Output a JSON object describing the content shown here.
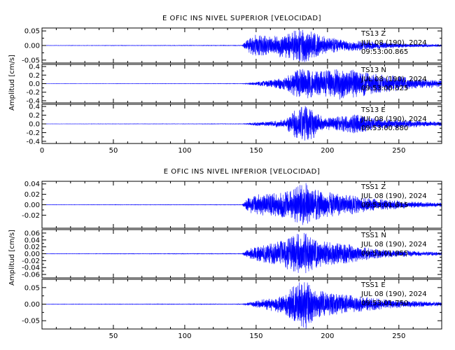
{
  "charts": [
    {
      "title": "E OFIC INS NIVEL SUPERIOR [VELOCIDAD]",
      "ylabel": "Amplitud [cm/s]",
      "panels": [
        {
          "station": "TS13",
          "component": "Z",
          "date": "JUL 08 (190), 2024",
          "time": "09:53:00.865",
          "ylim": [
            -0.06,
            0.06
          ],
          "yticks": [
            0.05,
            0.0,
            -0.05
          ],
          "ytick_labels": [
            "0.05",
            "0.00",
            "-0.05"
          ]
        },
        {
          "station": "TS13",
          "component": "N",
          "date": "JUL 08 (190), 2024",
          "time": "09:53:00.025",
          "ylim": [
            -0.45,
            0.45
          ],
          "yticks": [
            0.4,
            0.2,
            0.0,
            -0.2,
            -0.4
          ],
          "ytick_labels": [
            "0.4",
            "0.2",
            "0.0",
            "-0.2",
            "-0.4"
          ]
        },
        {
          "station": "TS13",
          "component": "E",
          "date": "JUL 08 (190), 2024",
          "time": "09:53:00.880",
          "ylim": [
            -0.45,
            0.45
          ],
          "yticks": [
            0.4,
            0.2,
            0.0,
            -0.2,
            -0.4
          ],
          "ytick_labels": [
            "0.4",
            "0.2",
            "0.0",
            "-0.2",
            "-0.4"
          ]
        }
      ],
      "xticks": [
        0,
        50,
        100,
        150,
        200,
        250
      ],
      "xtick_labels": [
        "0",
        "50",
        "100",
        "150",
        "200",
        "250"
      ]
    },
    {
      "title": "E OFIC INS NIVEL INFERIOR [VELOCIDAD]",
      "ylabel": "Amplitud [cm/s]",
      "panels": [
        {
          "station": "TSS1",
          "component": "Z",
          "date": "JUL 08 (190), 2024",
          "time": "09:53:01.615",
          "ylim": [
            -0.045,
            0.045
          ],
          "yticks": [
            0.04,
            0.02,
            0.0,
            -0.02
          ],
          "ytick_labels": [
            "0.04",
            "0.02",
            "0.00",
            "-0.02"
          ]
        },
        {
          "station": "TSS1",
          "component": "N",
          "date": "JUL 08 (190), 2024",
          "time": "09:53:01.955",
          "ylim": [
            -0.07,
            0.07
          ],
          "yticks": [
            0.06,
            0.04,
            0.02,
            0.0,
            -0.02,
            -0.04,
            -0.06
          ],
          "ytick_labels": [
            "0.06",
            "0.04",
            "0.02",
            "0.00",
            "-0.02",
            "-0.04",
            "-0.06"
          ]
        },
        {
          "station": "TSS1",
          "component": "E",
          "date": "JUL 08 (190), 2024",
          "time": "09:53:01.750",
          "ylim": [
            -0.075,
            0.075
          ],
          "yticks": [
            0.05,
            0.0,
            -0.05
          ],
          "ytick_labels": [
            "0.05",
            "0.00",
            "-0.05"
          ]
        }
      ],
      "xticks": [
        50,
        100,
        150,
        200,
        250
      ],
      "xtick_labels": [
        "50",
        "100",
        "150",
        "200",
        "250"
      ]
    }
  ],
  "chart_data": [
    {
      "type": "line",
      "title": "E OFIC INS NIVEL SUPERIOR [VELOCIDAD]",
      "ylabel": "Amplitud [cm/s]",
      "xlim": [
        0,
        280
      ],
      "grid": false,
      "color": "#0000ff",
      "series": [
        {
          "name": "TS13 Z",
          "ylim": [
            -0.06,
            0.06
          ],
          "envelope": {
            "x": [
              0,
              140,
              145,
              150,
              160,
              170,
              175,
              180,
              185,
              190,
              195,
              200,
              210,
              220,
              230,
              240,
              250,
              260,
              270,
              280
            ],
            "y": [
              0.0005,
              0.001,
              0.025,
              0.04,
              0.035,
              0.045,
              0.05,
              0.055,
              0.06,
              0.045,
              0.035,
              0.03,
              0.02,
              0.018,
              0.015,
              0.01,
              0.008,
              0.006,
              0.005,
              0.004
            ]
          }
        },
        {
          "name": "TS13 N",
          "ylim": [
            -0.45,
            0.45
          ],
          "envelope": {
            "x": [
              0,
              140,
              145,
              150,
              160,
              170,
              175,
              180,
              185,
              190,
              200,
              210,
              220,
              230,
              240,
              250,
              260,
              270,
              280
            ],
            "y": [
              0.002,
              0.005,
              0.02,
              0.04,
              0.08,
              0.15,
              0.25,
              0.35,
              0.4,
              0.3,
              0.32,
              0.38,
              0.35,
              0.25,
              0.2,
              0.18,
              0.12,
              0.1,
              0.08
            ]
          }
        },
        {
          "name": "TS13 E",
          "ylim": [
            -0.45,
            0.45
          ],
          "envelope": {
            "x": [
              0,
              140,
              145,
              150,
              160,
              170,
              175,
              180,
              185,
              190,
              195,
              200,
              210,
              220,
              230,
              240,
              250,
              260,
              270,
              280
            ],
            "y": [
              0.002,
              0.005,
              0.02,
              0.04,
              0.06,
              0.1,
              0.25,
              0.4,
              0.42,
              0.35,
              0.2,
              0.15,
              0.18,
              0.22,
              0.15,
              0.12,
              0.1,
              0.08,
              0.06,
              0.05
            ]
          }
        }
      ]
    },
    {
      "type": "line",
      "title": "E OFIC INS NIVEL INFERIOR [VELOCIDAD]",
      "ylabel": "Amplitud [cm/s]",
      "xlim": [
        0,
        280
      ],
      "grid": false,
      "color": "#0000ff",
      "series": [
        {
          "name": "TSS1 Z",
          "ylim": [
            -0.045,
            0.045
          ],
          "envelope": {
            "x": [
              0,
              140,
              145,
              150,
              160,
              170,
              175,
              180,
              185,
              190,
              200,
              210,
              220,
              230,
              240,
              250,
              260,
              270,
              280
            ],
            "y": [
              0.0003,
              0.0005,
              0.015,
              0.02,
              0.022,
              0.025,
              0.03,
              0.04,
              0.042,
              0.03,
              0.025,
              0.02,
              0.018,
              0.012,
              0.01,
              0.008,
              0.006,
              0.005,
              0.004
            ]
          }
        },
        {
          "name": "TSS1 N",
          "ylim": [
            -0.07,
            0.07
          ],
          "envelope": {
            "x": [
              0,
              140,
              145,
              150,
              160,
              170,
              175,
              180,
              185,
              190,
              200,
              210,
              220,
              230,
              240,
              250,
              260,
              270,
              280
            ],
            "y": [
              0.0005,
              0.001,
              0.015,
              0.02,
              0.03,
              0.04,
              0.055,
              0.065,
              0.06,
              0.045,
              0.035,
              0.03,
              0.025,
              0.015,
              0.012,
              0.01,
              0.008,
              0.006,
              0.005
            ]
          }
        },
        {
          "name": "TSS1 E",
          "ylim": [
            -0.075,
            0.075
          ],
          "envelope": {
            "x": [
              0,
              140,
              145,
              150,
              160,
              170,
              175,
              180,
              185,
              190,
              200,
              210,
              220,
              230,
              240,
              250,
              260,
              270,
              280
            ],
            "y": [
              0.0005,
              0.001,
              0.005,
              0.01,
              0.02,
              0.03,
              0.05,
              0.07,
              0.075,
              0.05,
              0.035,
              0.03,
              0.025,
              0.02,
              0.015,
              0.012,
              0.01,
              0.008,
              0.006
            ]
          }
        }
      ]
    }
  ]
}
